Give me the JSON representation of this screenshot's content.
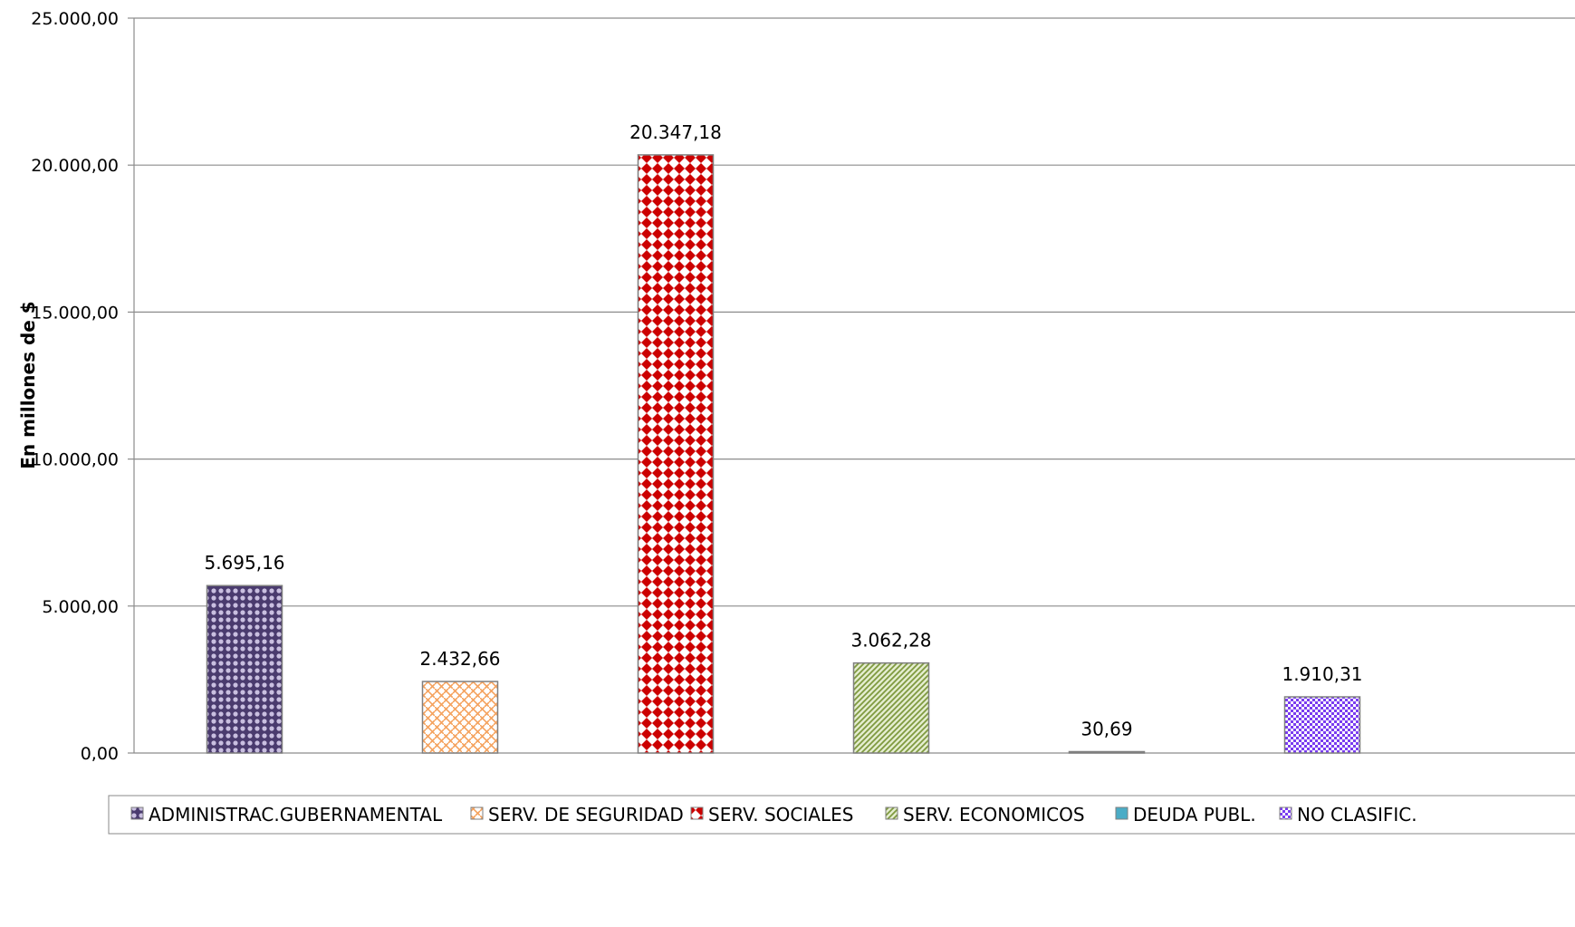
{
  "chart_data": {
    "type": "bar",
    "title": "",
    "xlabel": "",
    "ylabel": "En millones de $",
    "ylim": [
      0,
      25000
    ],
    "y_ticks": [
      0,
      5000,
      10000,
      15000,
      20000,
      25000
    ],
    "y_tick_labels": [
      "0,00",
      "5.000,00",
      "10.000,00",
      "15.000,00",
      "20.000,00",
      "25.000,00"
    ],
    "grid": true,
    "legend_position": "bottom",
    "series": [
      {
        "name": "ADMINISTRAC.GUBERNAMENTAL",
        "value": 5695.16,
        "label": "5.695,16",
        "color": "#5a4a80",
        "pattern": "dots"
      },
      {
        "name": "SERV. DE SEGURIDAD",
        "value": 2432.66,
        "label": "2.432,66",
        "color": "#f5a25d",
        "pattern": "weave"
      },
      {
        "name": "SERV. SOCIALES",
        "value": 20347.18,
        "label": "20.347,18",
        "color": "#cc0000",
        "pattern": "diamonds"
      },
      {
        "name": "SERV. ECONOMICOS",
        "value": 3062.28,
        "label": "3.062,28",
        "color": "#9bbb59",
        "pattern": "diagonal-stripes"
      },
      {
        "name": "DEUDA PUBL.",
        "value": 30.69,
        "label": "30,69",
        "color": "#4bacc6",
        "pattern": "solid"
      },
      {
        "name": "NO CLASIFIC.",
        "value": 1910.31,
        "label": "1.910,31",
        "color": "#7a3cf0",
        "pattern": "checker"
      }
    ]
  }
}
